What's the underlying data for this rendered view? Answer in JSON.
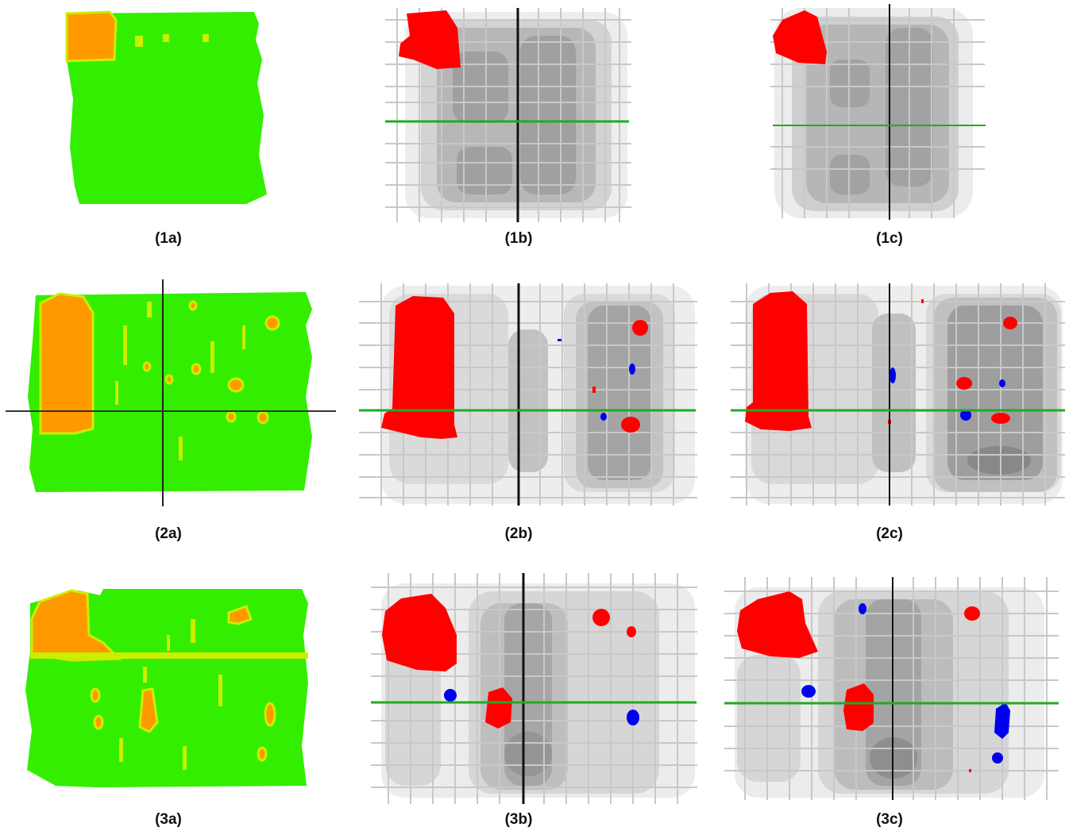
{
  "captions": {
    "p1a": "(1a)",
    "p1b": "(1b)",
    "p1c": "(1c)",
    "p2a": "(2a)",
    "p2b": "(2b)",
    "p2c": "(2c)",
    "p3a": "(3a)",
    "p3b": "(3b)",
    "p3c": "(3c)"
  },
  "colors": {
    "surface_green": "#33ee00",
    "surface_yellow": "#ccee00",
    "surface_orange": "#ff9900",
    "defect_red": "#ff0000",
    "defect_blue": "#0000ee",
    "section_line_green": "#22aa22",
    "section_line_black": "#111111",
    "grid_gray": "#c8c8c8"
  }
}
